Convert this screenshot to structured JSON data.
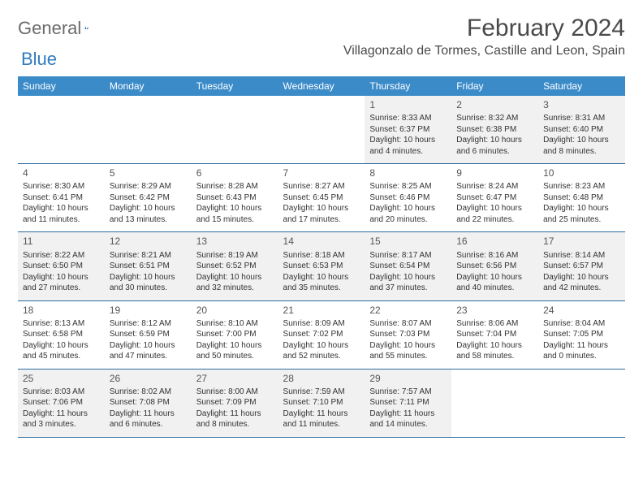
{
  "logo": {
    "part1": "General",
    "part2": "Blue"
  },
  "title": "February 2024",
  "location": "Villagonzalo de Tormes, Castille and Leon, Spain",
  "colors": {
    "header_bg": "#3b8bc9",
    "header_text": "#ffffff",
    "border": "#2c6ca0",
    "shade": "#f1f1f1",
    "logo_gray": "#6b6b6b",
    "logo_blue": "#2f7bbf"
  },
  "weekdays": [
    "Sunday",
    "Monday",
    "Tuesday",
    "Wednesday",
    "Thursday",
    "Friday",
    "Saturday"
  ],
  "weeks": [
    [
      null,
      null,
      null,
      null,
      {
        "n": "1",
        "sr": "8:33 AM",
        "ss": "6:37 PM",
        "dl": "10 hours and 4 minutes."
      },
      {
        "n": "2",
        "sr": "8:32 AM",
        "ss": "6:38 PM",
        "dl": "10 hours and 6 minutes."
      },
      {
        "n": "3",
        "sr": "8:31 AM",
        "ss": "6:40 PM",
        "dl": "10 hours and 8 minutes."
      }
    ],
    [
      {
        "n": "4",
        "sr": "8:30 AM",
        "ss": "6:41 PM",
        "dl": "10 hours and 11 minutes."
      },
      {
        "n": "5",
        "sr": "8:29 AM",
        "ss": "6:42 PM",
        "dl": "10 hours and 13 minutes."
      },
      {
        "n": "6",
        "sr": "8:28 AM",
        "ss": "6:43 PM",
        "dl": "10 hours and 15 minutes."
      },
      {
        "n": "7",
        "sr": "8:27 AM",
        "ss": "6:45 PM",
        "dl": "10 hours and 17 minutes."
      },
      {
        "n": "8",
        "sr": "8:25 AM",
        "ss": "6:46 PM",
        "dl": "10 hours and 20 minutes."
      },
      {
        "n": "9",
        "sr": "8:24 AM",
        "ss": "6:47 PM",
        "dl": "10 hours and 22 minutes."
      },
      {
        "n": "10",
        "sr": "8:23 AM",
        "ss": "6:48 PM",
        "dl": "10 hours and 25 minutes."
      }
    ],
    [
      {
        "n": "11",
        "sr": "8:22 AM",
        "ss": "6:50 PM",
        "dl": "10 hours and 27 minutes."
      },
      {
        "n": "12",
        "sr": "8:21 AM",
        "ss": "6:51 PM",
        "dl": "10 hours and 30 minutes."
      },
      {
        "n": "13",
        "sr": "8:19 AM",
        "ss": "6:52 PM",
        "dl": "10 hours and 32 minutes."
      },
      {
        "n": "14",
        "sr": "8:18 AM",
        "ss": "6:53 PM",
        "dl": "10 hours and 35 minutes."
      },
      {
        "n": "15",
        "sr": "8:17 AM",
        "ss": "6:54 PM",
        "dl": "10 hours and 37 minutes."
      },
      {
        "n": "16",
        "sr": "8:16 AM",
        "ss": "6:56 PM",
        "dl": "10 hours and 40 minutes."
      },
      {
        "n": "17",
        "sr": "8:14 AM",
        "ss": "6:57 PM",
        "dl": "10 hours and 42 minutes."
      }
    ],
    [
      {
        "n": "18",
        "sr": "8:13 AM",
        "ss": "6:58 PM",
        "dl": "10 hours and 45 minutes."
      },
      {
        "n": "19",
        "sr": "8:12 AM",
        "ss": "6:59 PM",
        "dl": "10 hours and 47 minutes."
      },
      {
        "n": "20",
        "sr": "8:10 AM",
        "ss": "7:00 PM",
        "dl": "10 hours and 50 minutes."
      },
      {
        "n": "21",
        "sr": "8:09 AM",
        "ss": "7:02 PM",
        "dl": "10 hours and 52 minutes."
      },
      {
        "n": "22",
        "sr": "8:07 AM",
        "ss": "7:03 PM",
        "dl": "10 hours and 55 minutes."
      },
      {
        "n": "23",
        "sr": "8:06 AM",
        "ss": "7:04 PM",
        "dl": "10 hours and 58 minutes."
      },
      {
        "n": "24",
        "sr": "8:04 AM",
        "ss": "7:05 PM",
        "dl": "11 hours and 0 minutes."
      }
    ],
    [
      {
        "n": "25",
        "sr": "8:03 AM",
        "ss": "7:06 PM",
        "dl": "11 hours and 3 minutes."
      },
      {
        "n": "26",
        "sr": "8:02 AM",
        "ss": "7:08 PM",
        "dl": "11 hours and 6 minutes."
      },
      {
        "n": "27",
        "sr": "8:00 AM",
        "ss": "7:09 PM",
        "dl": "11 hours and 8 minutes."
      },
      {
        "n": "28",
        "sr": "7:59 AM",
        "ss": "7:10 PM",
        "dl": "11 hours and 11 minutes."
      },
      {
        "n": "29",
        "sr": "7:57 AM",
        "ss": "7:11 PM",
        "dl": "11 hours and 14 minutes."
      },
      null,
      null
    ]
  ],
  "labels": {
    "sunrise": "Sunrise:",
    "sunset": "Sunset:",
    "daylight": "Daylight:"
  }
}
